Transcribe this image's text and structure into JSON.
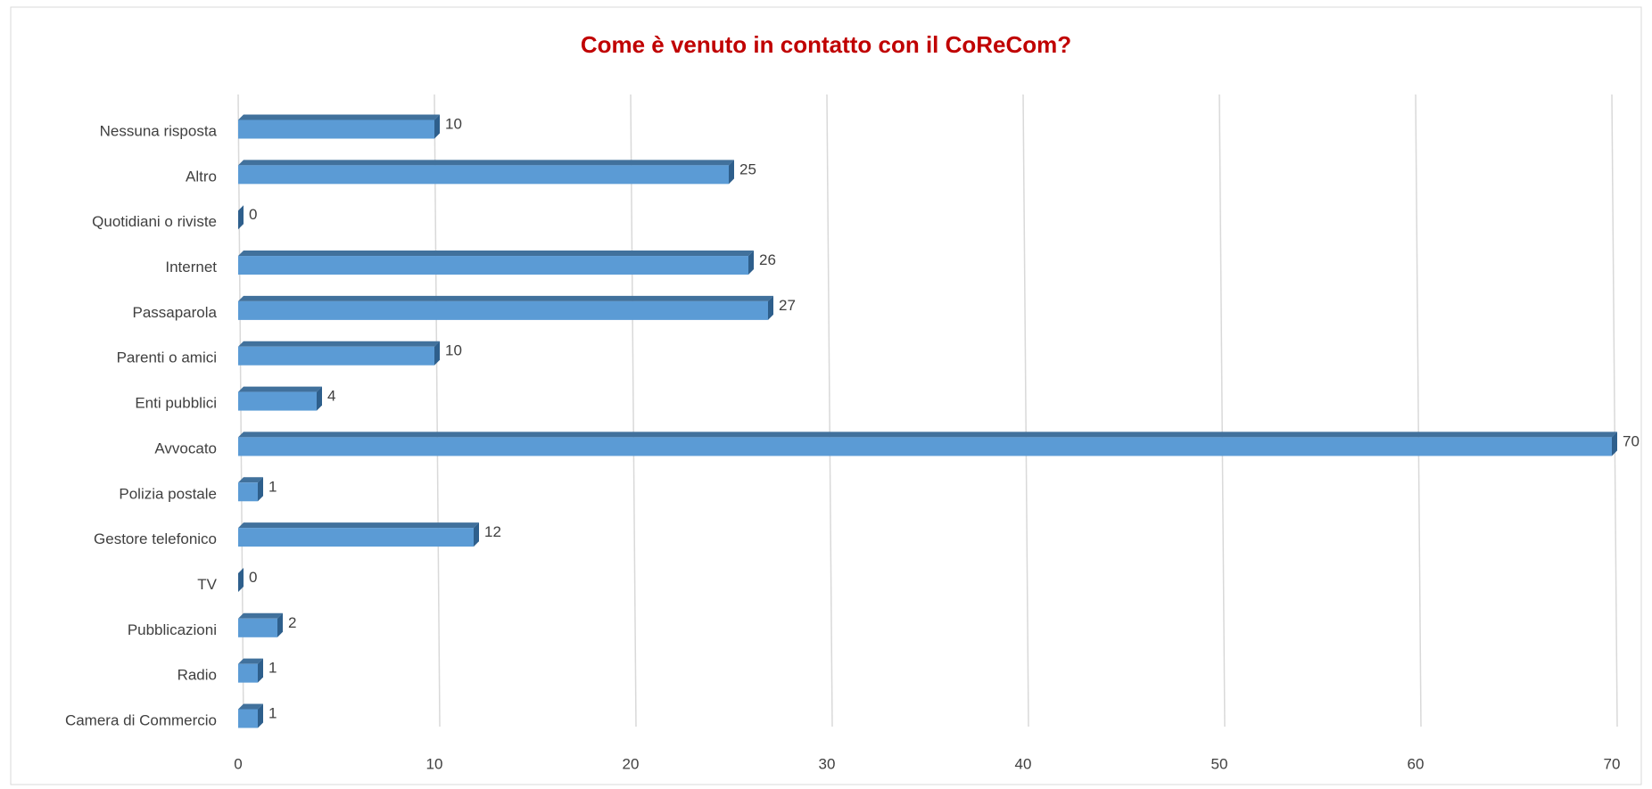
{
  "chart_data": {
    "type": "bar",
    "orientation": "horizontal",
    "title": "Come è venuto in contatto con il CoReCom?",
    "categories": [
      "Nessuna risposta",
      "Altro",
      "Quotidiani o riviste",
      "Internet",
      "Passaparola",
      "Parenti o amici",
      "Enti pubblici",
      "Avvocato",
      "Polizia postale",
      "Gestore telefonico",
      "TV",
      "Pubblicazioni",
      "Radio",
      "Camera di Commercio"
    ],
    "values": [
      10,
      25,
      0,
      26,
      27,
      10,
      4,
      70,
      1,
      12,
      0,
      2,
      1,
      1
    ],
    "color": "#5b9bd5",
    "xlim": [
      0,
      70
    ],
    "xticks": [
      0,
      10,
      20,
      30,
      40,
      50,
      60,
      70
    ],
    "grid": true
  }
}
